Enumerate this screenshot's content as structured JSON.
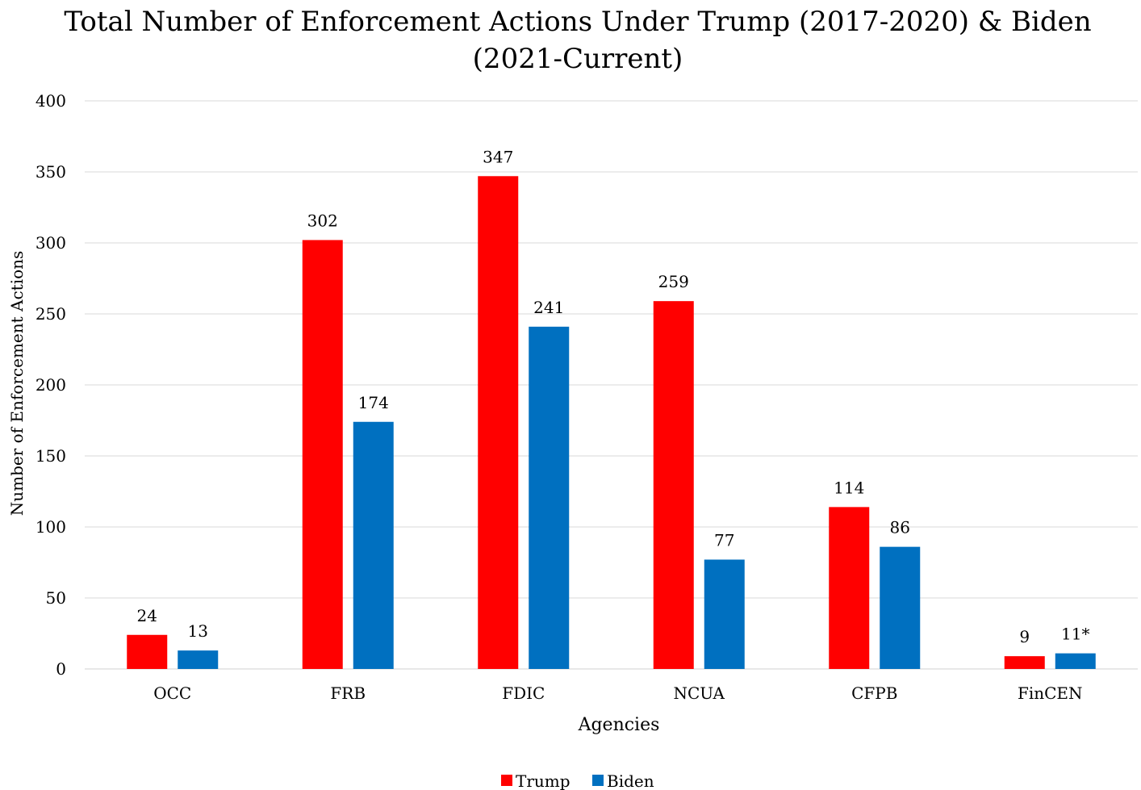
{
  "chart_data": {
    "type": "bar",
    "title_line1": "Total Number of Enforcement Actions Under Trump (2017-2020) & Biden",
    "title_line2": "(2021-Current)",
    "xlabel": "Agencies",
    "ylabel": "Number of Enforcement Actions",
    "categories": [
      "OCC",
      "FRB",
      "FDIC",
      "NCUA",
      "CFPB",
      "FinCEN"
    ],
    "ylim": [
      0,
      400
    ],
    "yticks": [
      0,
      50,
      100,
      150,
      200,
      250,
      300,
      350,
      400
    ],
    "grid": true,
    "legend_position": "bottom",
    "series": [
      {
        "name": "Trump",
        "color": "#ff0000",
        "values": [
          24,
          302,
          347,
          259,
          114,
          9
        ],
        "labels": [
          "24",
          "302",
          "347",
          "259",
          "114",
          "9"
        ]
      },
      {
        "name": "Biden",
        "color": "#0070c0",
        "values": [
          13,
          174,
          241,
          77,
          86,
          11
        ],
        "labels": [
          "13",
          "174",
          "241",
          "77",
          "86",
          "11*"
        ]
      }
    ]
  }
}
